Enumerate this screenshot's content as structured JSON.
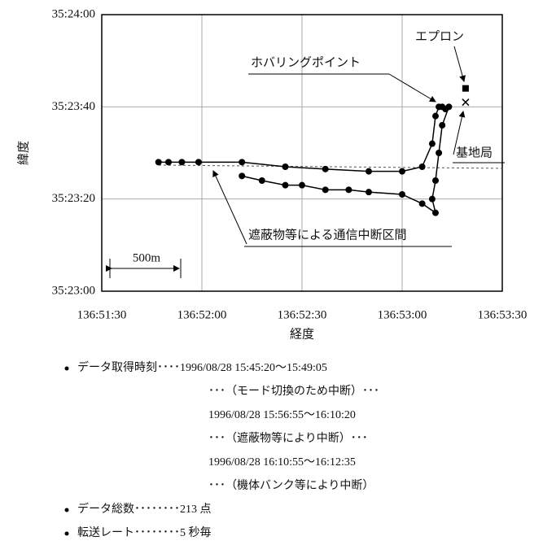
{
  "chart_data": {
    "type": "line",
    "x_label": "経度",
    "y_label": "緯度",
    "xlim": [
      492690,
      492810
    ],
    "ylim": [
      127380,
      127440
    ],
    "xticks": [
      {
        "value": 492690,
        "label": "136:51:30"
      },
      {
        "value": 492720,
        "label": "136:52:00"
      },
      {
        "value": 492750,
        "label": "136:52:30"
      },
      {
        "value": 492780,
        "label": "136:53:00"
      },
      {
        "value": 492810,
        "label": "136:53:30"
      }
    ],
    "yticks": [
      {
        "value": 127380,
        "label": "35:23:00"
      },
      {
        "value": 127400,
        "label": "35:23:20"
      },
      {
        "value": 127420,
        "label": "35:23:40"
      },
      {
        "value": 127440,
        "label": "35:24:00"
      }
    ],
    "grid": true,
    "series": [
      {
        "color": "#000000",
        "x": [
          492707,
          492710,
          492714,
          492719,
          492732,
          492745,
          492757,
          492770,
          492780,
          492786,
          492789,
          492790,
          492791,
          492792,
          492793,
          492794,
          492792,
          492791,
          492790,
          492789,
          492790,
          492786,
          492780,
          492770,
          492764,
          492757,
          492750,
          492745,
          492738,
          492732
        ],
        "y": [
          127408,
          127408,
          127408,
          127408,
          127408,
          127407,
          127406.5,
          127406,
          127406,
          127407,
          127412,
          127418,
          127420,
          127420,
          127419.5,
          127420,
          127416,
          127410,
          127404,
          127400,
          127397,
          127399,
          127401,
          127401.5,
          127402,
          127402,
          127403,
          127403,
          127404,
          127405
        ]
      }
    ],
    "markers": [
      {
        "label": "エプロン",
        "shape": "square",
        "x": 492799,
        "y": 127424
      },
      {
        "label": "基地局",
        "shape": "cross",
        "x": 492799,
        "y": 127421
      }
    ],
    "annotations": [
      "ホバリングポイント",
      "遮蔽物等による通信中断区間",
      "500m"
    ]
  },
  "notes": [
    {
      "text": "データ取得時刻････1996/08/28 15:45:20～15:49:05",
      "continued": [
        "･･･（モード切換のため中断）･･･",
        "1996/08/28 15:56:55～16:10:20",
        "･･･（遮蔽物等により中断）･･･",
        "1996/08/28 16:10:55～16:12:35",
        "･･･（機体バンク等により中断）"
      ]
    },
    {
      "text": "データ総数････････213 点"
    },
    {
      "text": "転送レート････････5 秒毎"
    }
  ]
}
